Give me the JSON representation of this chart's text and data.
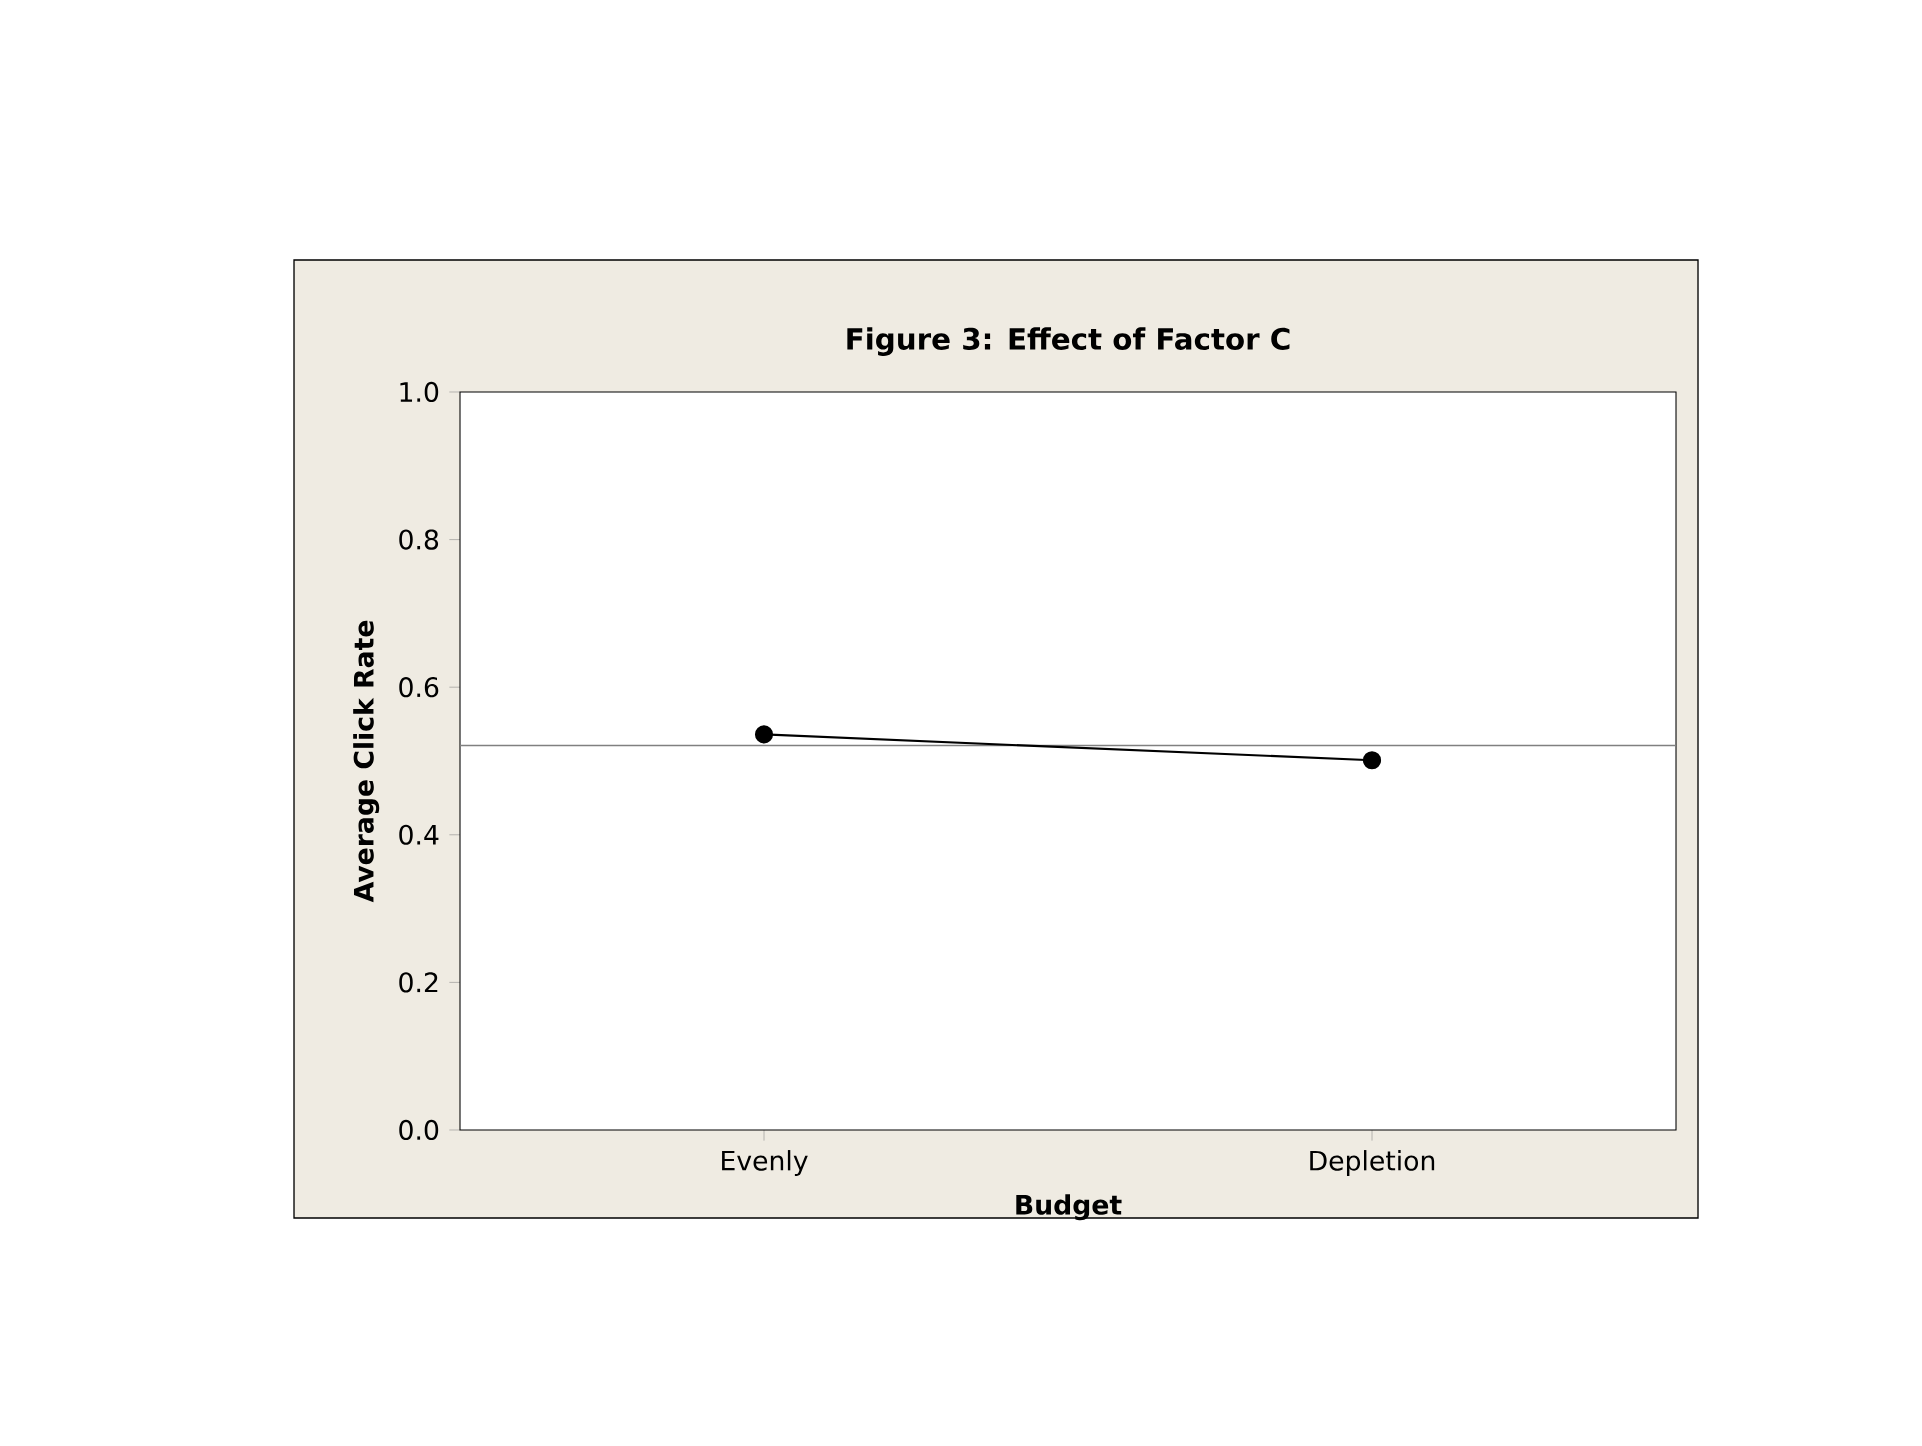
{
  "chart_data": {
    "type": "line",
    "title": "Figure 3: Effect of Factor C",
    "xlabel": "Budget",
    "ylabel": "Average Click Rate",
    "categories": [
      "Evenly",
      "Depletion"
    ],
    "series": [
      {
        "color": "#000000",
        "values": [
          0.536,
          0.501
        ]
      }
    ],
    "ylim": [
      0,
      1
    ],
    "yticks": [
      {
        "value": 0,
        "label": "0.0"
      },
      {
        "value": 0.2,
        "label": "0.2"
      },
      {
        "value": 0.4,
        "label": "0.4"
      },
      {
        "value": 0.6,
        "label": "0.6"
      },
      {
        "value": 0.8,
        "label": "0.8"
      },
      {
        "value": 1,
        "label": "1.0"
      }
    ],
    "ref_lines": [
      {
        "axis": "y",
        "value": 0.521,
        "color": "#808080"
      }
    ],
    "marker": "circle",
    "line_style": "solid",
    "grid": false
  }
}
